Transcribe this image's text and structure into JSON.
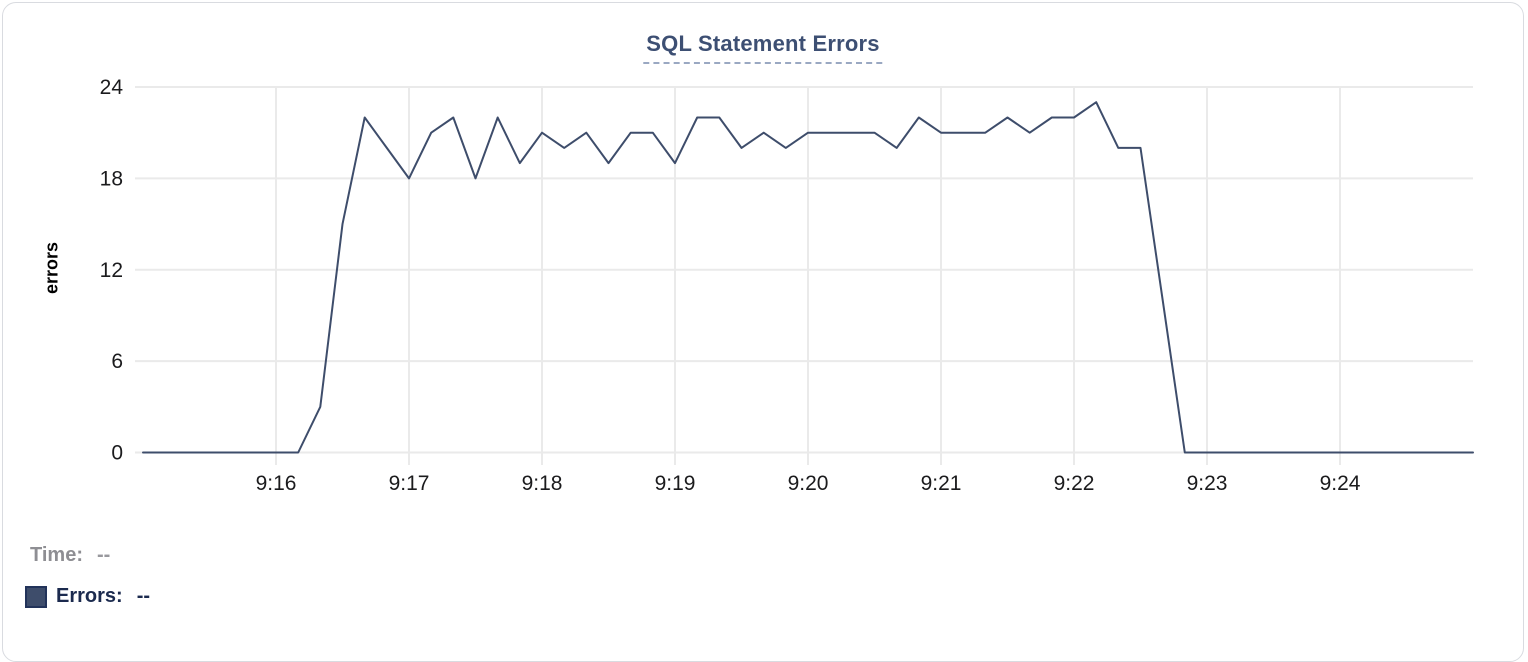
{
  "title": "SQL Statement Errors",
  "colors": {
    "line": "#3e4d6b",
    "title_text": "#3d4f73",
    "title_underline": "#9aa8c2",
    "grid": "#eaeaea",
    "tick_text": "#1b1b1d",
    "legend_time_gray": "#8e8e93",
    "legend_errors_navy": "#1b2a4e",
    "card_border": "#d9dbe0"
  },
  "tooltip": {
    "time_label": "Time:",
    "time_value": "--",
    "errors_label": "Errors:",
    "errors_value": "--",
    "swatch_icon": "errors-series-swatch"
  },
  "chart_data": {
    "type": "line",
    "title": "SQL Statement Errors",
    "xlabel": "",
    "ylabel": "errors",
    "ylim": [
      0,
      24
    ],
    "yticks": [
      0,
      6,
      12,
      18,
      24
    ],
    "xticks": [
      "9:16",
      "9:17",
      "9:18",
      "9:19",
      "9:20",
      "9:21",
      "9:22",
      "9:23",
      "9:24"
    ],
    "grid": true,
    "legend_position": "bottom",
    "x": [
      "9:15:00",
      "9:15:10",
      "9:15:20",
      "9:15:30",
      "9:15:40",
      "9:15:50",
      "9:16:00",
      "9:16:10",
      "9:16:20",
      "9:16:30",
      "9:16:40",
      "9:16:50",
      "9:17:00",
      "9:17:10",
      "9:17:20",
      "9:17:30",
      "9:17:40",
      "9:17:50",
      "9:18:00",
      "9:18:10",
      "9:18:20",
      "9:18:30",
      "9:18:40",
      "9:18:50",
      "9:19:00",
      "9:19:10",
      "9:19:20",
      "9:19:30",
      "9:19:40",
      "9:19:50",
      "9:20:00",
      "9:20:10",
      "9:20:20",
      "9:20:30",
      "9:20:40",
      "9:20:50",
      "9:21:00",
      "9:21:10",
      "9:21:20",
      "9:21:30",
      "9:21:40",
      "9:21:50",
      "9:22:00",
      "9:22:10",
      "9:22:20",
      "9:22:30",
      "9:22:40",
      "9:22:50",
      "9:23:00",
      "9:23:10",
      "9:23:20",
      "9:23:30",
      "9:23:40",
      "9:23:50",
      "9:24:00",
      "9:24:10",
      "9:24:20",
      "9:24:30",
      "9:24:40",
      "9:24:50",
      "9:25:00"
    ],
    "series": [
      {
        "name": "Errors",
        "color": "#3e4d6b",
        "values": [
          0,
          0,
          0,
          0,
          0,
          0,
          0,
          0,
          3,
          15,
          22,
          20,
          18,
          21,
          22,
          18,
          22,
          19,
          21,
          20,
          21,
          19,
          21,
          21,
          19,
          22,
          22,
          20,
          21,
          20,
          21,
          21,
          21,
          21,
          20,
          22,
          21,
          21,
          21,
          22,
          21,
          22,
          22,
          23,
          20,
          20,
          10,
          0,
          0,
          0,
          0,
          0,
          0,
          0,
          0,
          0,
          0,
          0,
          0,
          0,
          0
        ]
      }
    ]
  }
}
